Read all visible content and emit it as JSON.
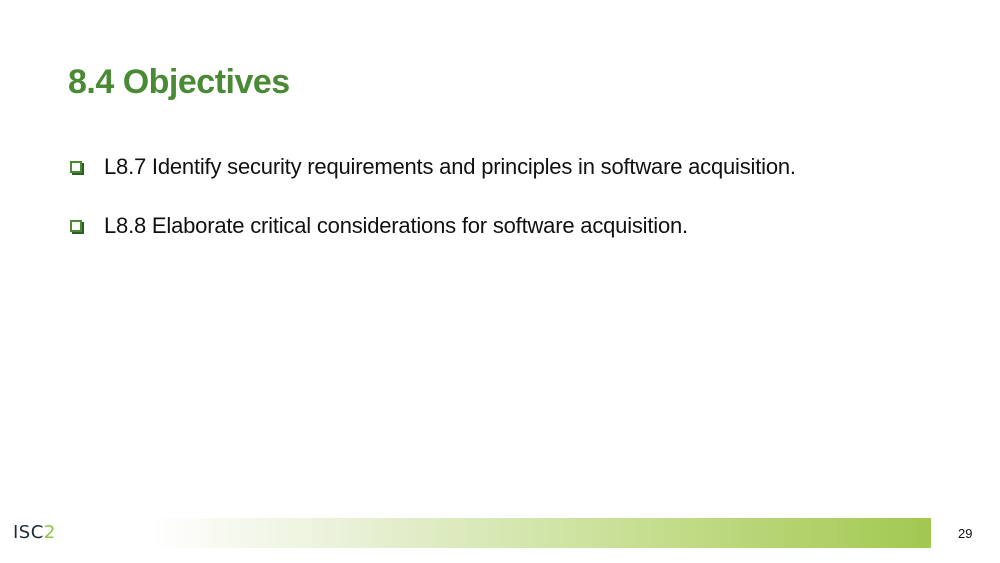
{
  "slide": {
    "title": "8.4 Objectives",
    "objectives": [
      "L8.7 Identify security requirements and principles in software acquisition.",
      "L8.8 Elaborate critical considerations for software acquisition."
    ],
    "footer": {
      "logo_text": "ISC",
      "logo_accent": "2",
      "page_number": "29"
    },
    "colors": {
      "title_green": "#4a8a35",
      "bar_green": "#a2c850"
    }
  }
}
